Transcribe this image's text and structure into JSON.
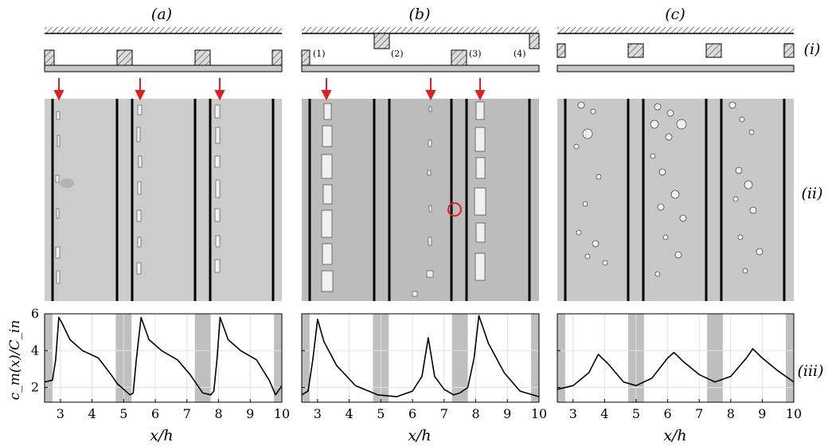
{
  "panel_labels": [
    "(a)",
    "(b)",
    "(c)"
  ],
  "row_labels": [
    "(i)",
    "(ii)",
    "(iii)"
  ],
  "block_labels": [
    "(1)",
    "(2)",
    "(3)",
    "(4)"
  ],
  "x_axis_label": "x/h",
  "y_axis_label": "c_m(x)/C_in",
  "colors": {
    "arrow": "#e02020",
    "marker_circle": "#e02020",
    "photo_bg": "#c9c9c9",
    "block_fill": "#d9d9d9",
    "shade": "#bfbfbf",
    "curve": "#000000"
  },
  "chart_data": [
    {
      "type": "line",
      "panel": "(a)",
      "xlim": [
        2.5,
        10
      ],
      "ylim": [
        1.2,
        6
      ],
      "x_ticks": [
        3,
        4,
        5,
        6,
        7,
        8,
        9,
        10
      ],
      "y_ticks": [
        2,
        4,
        6
      ],
      "xlabel": "x/h",
      "ylabel": "c_m(x)/C_in",
      "grid": true,
      "shaded_x": [
        [
          2.5,
          2.75
        ],
        [
          4.75,
          5.25
        ],
        [
          7.25,
          7.75
        ],
        [
          9.75,
          10
        ]
      ],
      "x": [
        2.5,
        2.75,
        2.85,
        2.95,
        3.05,
        3.3,
        3.7,
        4.2,
        4.6,
        4.8,
        5.0,
        5.2,
        5.3,
        5.4,
        5.55,
        5.8,
        6.2,
        6.7,
        7.1,
        7.3,
        7.5,
        7.75,
        7.85,
        7.95,
        8.05,
        8.3,
        8.7,
        9.2,
        9.6,
        9.8,
        10.0
      ],
      "y": [
        2.3,
        2.4,
        3.5,
        5.8,
        5.5,
        4.6,
        4.0,
        3.6,
        2.7,
        2.2,
        1.9,
        1.6,
        1.7,
        3.5,
        5.8,
        4.6,
        4.0,
        3.5,
        2.7,
        2.2,
        1.7,
        1.6,
        1.8,
        3.5,
        5.8,
        4.6,
        4.0,
        3.5,
        2.4,
        1.6,
        2.1
      ]
    },
    {
      "type": "line",
      "panel": "(b)",
      "xlim": [
        2.5,
        10
      ],
      "ylim": [
        1.2,
        6
      ],
      "x_ticks": [
        3,
        4,
        5,
        6,
        7,
        8,
        9,
        10
      ],
      "y_ticks": [
        2,
        4,
        6
      ],
      "xlabel": "x/h",
      "ylabel": "",
      "grid": true,
      "shaded_x": [
        [
          2.5,
          2.75
        ],
        [
          4.75,
          5.25
        ],
        [
          7.25,
          7.75
        ],
        [
          9.75,
          10
        ]
      ],
      "x": [
        2.5,
        2.7,
        2.85,
        3.0,
        3.2,
        3.6,
        4.2,
        4.9,
        5.5,
        6.0,
        6.3,
        6.5,
        6.7,
        7.0,
        7.3,
        7.5,
        7.75,
        7.95,
        8.1,
        8.4,
        8.9,
        9.4,
        10.0
      ],
      "y": [
        1.6,
        1.8,
        3.5,
        5.7,
        4.5,
        3.2,
        2.1,
        1.6,
        1.5,
        1.8,
        2.6,
        4.7,
        2.6,
        1.9,
        1.6,
        1.7,
        2.0,
        3.6,
        5.9,
        4.4,
        2.8,
        1.8,
        1.5
      ]
    },
    {
      "type": "line",
      "panel": "(c)",
      "xlim": [
        2.5,
        10
      ],
      "ylim": [
        1.2,
        6
      ],
      "x_ticks": [
        3,
        4,
        5,
        6,
        7,
        8,
        9,
        10
      ],
      "y_ticks": [
        2,
        4,
        6
      ],
      "xlabel": "x/h",
      "ylabel": "",
      "grid": true,
      "shaded_x": [
        [
          2.5,
          2.75
        ],
        [
          4.75,
          5.25
        ],
        [
          7.25,
          7.75
        ],
        [
          9.75,
          10
        ]
      ],
      "x": [
        2.5,
        3.0,
        3.5,
        3.8,
        4.1,
        4.6,
        5.0,
        5.5,
        6.0,
        6.2,
        6.5,
        7.0,
        7.5,
        8.0,
        8.5,
        8.7,
        9.0,
        9.5,
        10.0
      ],
      "y": [
        1.9,
        2.1,
        2.8,
        3.8,
        3.3,
        2.3,
        2.1,
        2.5,
        3.6,
        3.9,
        3.4,
        2.7,
        2.3,
        2.6,
        3.6,
        4.1,
        3.6,
        2.9,
        2.3
      ]
    }
  ]
}
